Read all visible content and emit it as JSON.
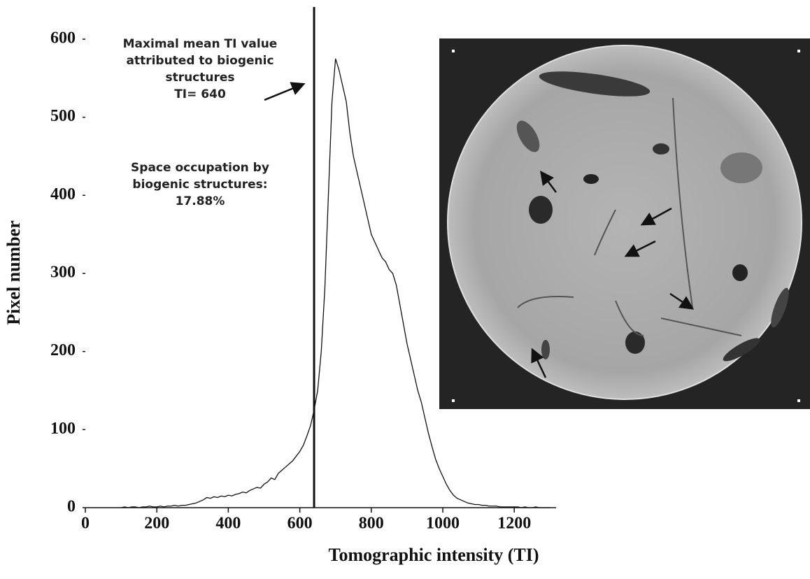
{
  "chart_data": {
    "type": "line",
    "x_label": "Tomographic intensity (TI)",
    "y_label": "Pixel number",
    "x": [
      100,
      110,
      120,
      130,
      140,
      150,
      160,
      170,
      180,
      190,
      200,
      210,
      220,
      230,
      240,
      250,
      260,
      270,
      280,
      290,
      300,
      310,
      320,
      330,
      340,
      350,
      360,
      370,
      380,
      390,
      400,
      410,
      420,
      430,
      440,
      450,
      460,
      470,
      480,
      490,
      500,
      510,
      520,
      530,
      540,
      550,
      560,
      570,
      580,
      590,
      600,
      610,
      620,
      630,
      640,
      650,
      660,
      670,
      680,
      690,
      700,
      710,
      720,
      730,
      740,
      750,
      760,
      770,
      780,
      790,
      800,
      810,
      820,
      830,
      840,
      850,
      860,
      870,
      880,
      890,
      900,
      910,
      920,
      930,
      940,
      950,
      960,
      970,
      980,
      990,
      1000,
      1010,
      1020,
      1030,
      1040,
      1050,
      1060,
      1070,
      1080,
      1090,
      1100,
      1110,
      1120,
      1130,
      1140,
      1150,
      1160,
      1170,
      1180,
      1190,
      1200,
      1210,
      1220,
      1230,
      1240,
      1250,
      1260,
      1270,
      1280,
      1290,
      1300
    ],
    "values": [
      0,
      1,
      0,
      1,
      1,
      0,
      1,
      1,
      2,
      1,
      1,
      2,
      1,
      2,
      2,
      3,
      2,
      3,
      3,
      4,
      5,
      6,
      8,
      10,
      13,
      12,
      14,
      13,
      15,
      14,
      16,
      15,
      17,
      18,
      20,
      19,
      22,
      24,
      26,
      25,
      30,
      33,
      38,
      36,
      44,
      48,
      52,
      56,
      60,
      66,
      72,
      80,
      92,
      105,
      125,
      150,
      200,
      280,
      400,
      520,
      575,
      560,
      540,
      520,
      480,
      450,
      430,
      410,
      390,
      370,
      350,
      340,
      330,
      320,
      315,
      305,
      300,
      285,
      260,
      235,
      210,
      190,
      170,
      150,
      135,
      115,
      95,
      78,
      62,
      50,
      40,
      30,
      22,
      16,
      12,
      10,
      8,
      6,
      5,
      4,
      4,
      3,
      3,
      2,
      2,
      2,
      1,
      1,
      1,
      1,
      1,
      1,
      0,
      1,
      0,
      0,
      1,
      0,
      0,
      0,
      0
    ],
    "color": "#111111",
    "xlim": [
      0,
      1317
    ],
    "ylim": [
      0,
      600
    ],
    "xticks": [
      0,
      200,
      400,
      600,
      800,
      1000,
      1200
    ],
    "yticks": [
      0,
      100,
      200,
      300,
      400,
      500,
      600
    ],
    "threshold": {
      "value": 640,
      "label": "TI= 640"
    },
    "annotations": [
      "Maximal mean TI value",
      "attributed to biogenic",
      "structures",
      "Space occupation by",
      "biogenic structures:",
      "17.88%"
    ]
  }
}
